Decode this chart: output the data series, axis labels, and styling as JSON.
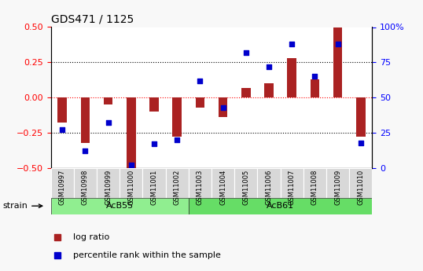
{
  "title": "GDS471 / 1125",
  "samples": [
    "GSM10997",
    "GSM10998",
    "GSM10999",
    "GSM11000",
    "GSM11001",
    "GSM11002",
    "GSM11003",
    "GSM11004",
    "GSM11005",
    "GSM11006",
    "GSM11007",
    "GSM11008",
    "GSM11009",
    "GSM11010"
  ],
  "log_ratio": [
    -0.18,
    -0.32,
    -0.05,
    -0.5,
    -0.1,
    -0.28,
    -0.07,
    -0.14,
    0.07,
    0.1,
    0.28,
    0.13,
    0.5,
    -0.28
  ],
  "percentile": [
    27,
    12,
    32,
    2,
    17,
    20,
    62,
    43,
    82,
    72,
    88,
    65,
    88,
    18
  ],
  "groups": [
    {
      "label": "AcB55",
      "start": 0,
      "end": 5,
      "color": "#90ee90"
    },
    {
      "label": "AcB61",
      "start": 6,
      "end": 13,
      "color": "#66dd66"
    }
  ],
  "bar_color": "#aa2222",
  "square_color": "#0000cc",
  "ylim": [
    -0.5,
    0.5
  ],
  "y2lim": [
    0,
    100
  ],
  "yticks": [
    -0.5,
    -0.25,
    0,
    0.25,
    0.5
  ],
  "y2ticks": [
    0,
    25,
    50,
    75,
    100
  ],
  "hlines": [
    -0.25,
    0,
    0.25
  ],
  "hline_colors": [
    "black",
    "red",
    "black"
  ],
  "hline_styles": [
    "dotted",
    "dotted",
    "dotted"
  ],
  "legend_items": [
    {
      "label": "log ratio",
      "color": "#aa2222",
      "marker": "s"
    },
    {
      "label": "percentile rank within the sample",
      "color": "#0000cc",
      "marker": "s"
    }
  ],
  "strain_label": "strain",
  "background_color": "#f0f0f0",
  "plot_bg": "#ffffff"
}
